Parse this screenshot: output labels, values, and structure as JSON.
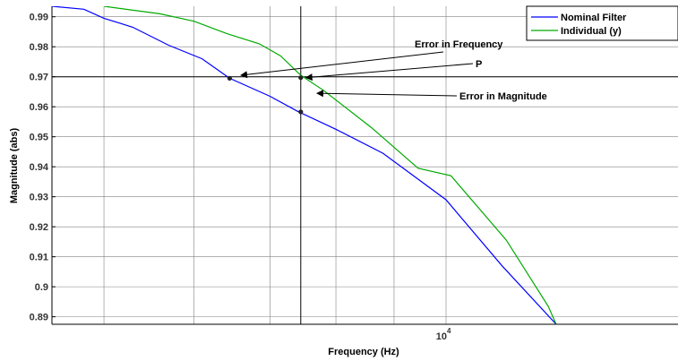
{
  "chart_data": {
    "type": "line",
    "title": "",
    "xlabel": "Frequency  (Hz)",
    "ylabel": "Magnitude (abs)",
    "xscale": "log",
    "xlim": [
      4500,
      16000
    ],
    "ylim": [
      0.8875,
      0.9935
    ],
    "grid": true,
    "legend_position": "top-right",
    "y_ticks": [
      0.89,
      0.9,
      0.91,
      0.92,
      0.93,
      0.94,
      0.95,
      0.96,
      0.97,
      0.98,
      0.99
    ],
    "y_tick_labels": [
      "0.89",
      "0.9",
      "0.91",
      "0.92",
      "0.93",
      "0.94",
      "0.95",
      "0.96",
      "0.97",
      "0.98",
      "0.99"
    ],
    "x_grid_lines": [
      5000,
      6000,
      7000,
      8000,
      9000,
      10000
    ],
    "x_tick_label": {
      "base": "10",
      "exponent": "4",
      "value": 10000
    },
    "series": [
      {
        "name": "Nominal Filter",
        "color": "#0000ff",
        "points": [
          [
            4500,
            0.9935
          ],
          [
            4800,
            0.9925
          ],
          [
            5000,
            0.9895
          ],
          [
            5300,
            0.9865
          ],
          [
            5700,
            0.9805
          ],
          [
            6100,
            0.976
          ],
          [
            6450,
            0.9695
          ],
          [
            7000,
            0.9635
          ],
          [
            7400,
            0.9585
          ],
          [
            8000,
            0.9525
          ],
          [
            8800,
            0.9445
          ],
          [
            10000,
            0.929
          ],
          [
            11200,
            0.907
          ],
          [
            12500,
            0.8875
          ]
        ]
      },
      {
        "name": "Individual (y)",
        "color": "#00aa00",
        "points": [
          [
            5000,
            0.9935
          ],
          [
            5600,
            0.991
          ],
          [
            6000,
            0.9885
          ],
          [
            6400,
            0.9845
          ],
          [
            6850,
            0.981
          ],
          [
            7150,
            0.977
          ],
          [
            7450,
            0.9705
          ],
          [
            7800,
            0.9655
          ],
          [
            8600,
            0.953
          ],
          [
            9450,
            0.9395
          ],
          [
            10100,
            0.937
          ],
          [
            11300,
            0.9155
          ],
          [
            12300,
            0.8935
          ],
          [
            12500,
            0.8875
          ]
        ]
      }
    ],
    "reference_lines": {
      "horizontal_y": 0.97,
      "vertical_x": 7450
    },
    "marked_points": [
      {
        "x": 6450,
        "y": 0.9695
      },
      {
        "x": 7450,
        "y": 0.9697
      },
      {
        "x": 7450,
        "y": 0.9583
      }
    ],
    "annotations": [
      {
        "text": "Error in Frequency",
        "arrow_to": {
          "x": 6600,
          "y": 0.9705
        }
      },
      {
        "text": "P",
        "arrow_to": {
          "x": 7530,
          "y": 0.9697
        }
      },
      {
        "text": "Error in Magnitude",
        "arrow_to": {
          "x": 7700,
          "y": 0.9645
        }
      }
    ],
    "colors": {
      "axis": "#000000",
      "grid": "#808080",
      "reference": "#000000"
    }
  }
}
